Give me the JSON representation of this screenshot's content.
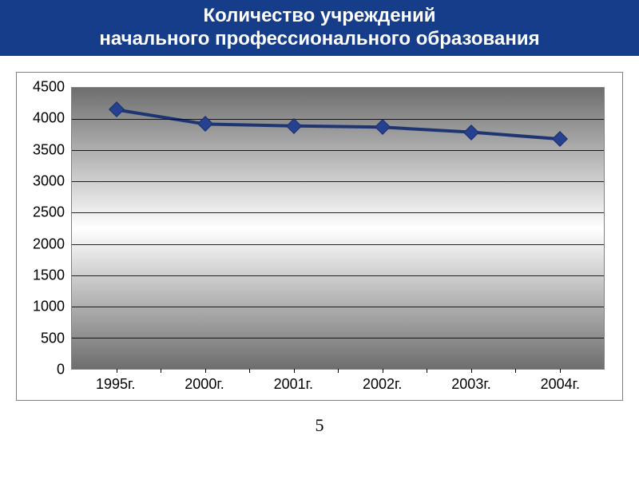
{
  "header": {
    "text": "Количество учреждений\nначального профессионального образования",
    "background_color": "#153d8a",
    "text_color": "#ffffff",
    "fontsize": 24
  },
  "page_number": {
    "text": "5",
    "fontsize": 22,
    "color": "#000000"
  },
  "chart": {
    "type": "line",
    "background_gradient": [
      "#6e6e6e",
      "#ffffff",
      "#6e6e6e"
    ],
    "grid_color": "#000000",
    "border_color": "#808080",
    "categories": [
      "1995г.",
      "2000г.",
      "2001г.",
      "2002г.",
      "2003г.",
      "2004г."
    ],
    "values": [
      4150,
      3920,
      3890,
      3870,
      3790,
      3680
    ],
    "ylim": [
      0,
      4500
    ],
    "ytick_step": 500,
    "yticks": [
      0,
      500,
      1000,
      1500,
      2000,
      2500,
      3000,
      3500,
      4000,
      4500
    ],
    "line_color": "#1f3571",
    "line_width": 4,
    "marker": {
      "shape": "diamond",
      "size": 14,
      "fill": "#26418f",
      "stroke": "#1b2f66"
    },
    "axis_label_fontsize": 18,
    "axis_label_color": "#000000"
  }
}
